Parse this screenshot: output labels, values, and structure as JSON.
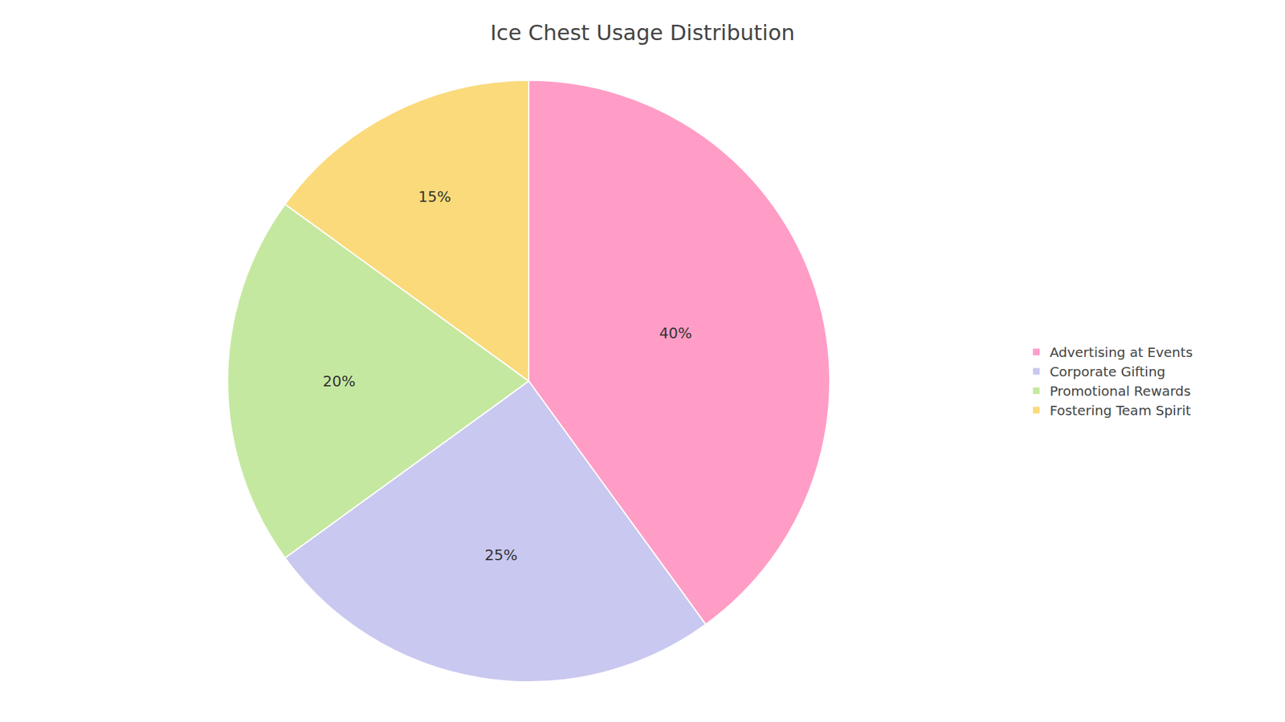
{
  "chart_data": {
    "type": "pie",
    "title": "Ice Chest Usage Distribution",
    "categories": [
      "Advertising at Events",
      "Corporate Gifting",
      "Promotional Rewards",
      "Fostering Team Spirit"
    ],
    "values": [
      40,
      25,
      20,
      15
    ],
    "value_labels": [
      "40%",
      "25%",
      "20%",
      "15%"
    ],
    "colors": [
      "#FF9DC6",
      "#C8C8F0",
      "#C5E8A0",
      "#FADA7A"
    ],
    "data_labels": true,
    "legend": "right"
  }
}
